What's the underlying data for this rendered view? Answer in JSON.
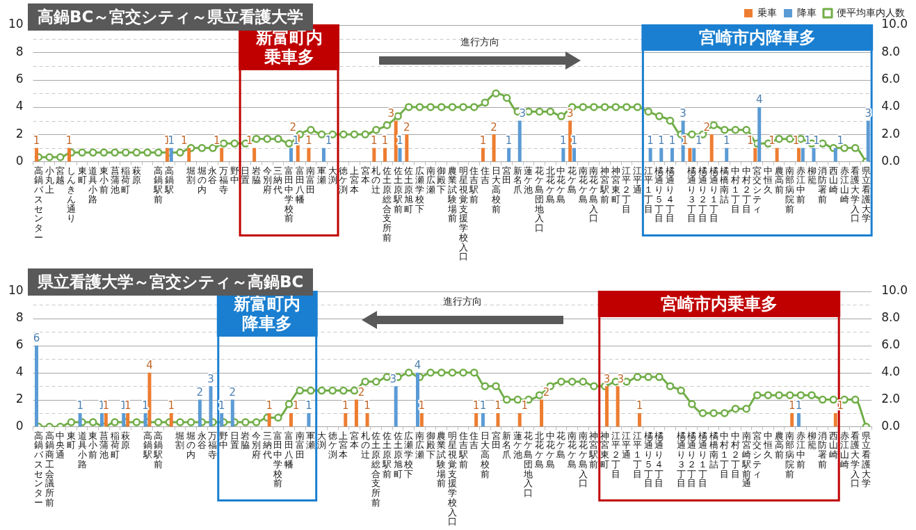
{
  "chart_data": [
    {
      "type": "bar",
      "title": "高鍋BC～宮交シティ～県立看護大学",
      "categories": [
        "高鍋バスセンター",
        "小丸上",
        "宮越",
        "しんきん通り",
        "東町",
        "道具小路",
        "東小前",
        "菖蒲池",
        "稲荷町",
        "萩原",
        null,
        "高鍋駅前",
        "高鍋駅",
        null,
        "堀割",
        "堀の内",
        "永谷",
        "万福寺",
        "野中",
        "日置",
        "岩脇",
        "今別府",
        "三納代",
        "富田中学校前",
        "富田八幡",
        "南富田",
        "軍瀬",
        "大渕",
        "徳ケ渕",
        "上宮本",
        "宮本",
        "札の辻",
        "佐土原総合支所前",
        "佐土原駅前",
        "佐土原旭町",
        "広瀬学校下",
        "南広瀬",
        "御殿下",
        "農業試験場前",
        "明星視覚支援学校入口",
        "住吉駅前",
        "住吉",
        "日大高校前",
        "宮田",
        "新名爪",
        "蓮ケ池",
        "花ケ島団地入口",
        "北花ケ島",
        "中花ケ島",
        "花ケ島",
        "南花ケ島",
        "南花ケ島入口",
        "神宮駅前",
        "神宮東町",
        "江平２丁目",
        "江平通",
        "江平１丁目",
        "橘通り５丁目",
        "橘通り４丁目",
        null,
        "橘通り３丁目",
        "橘通り２丁目",
        "橘通り１丁目",
        "橘橋南詰",
        "中村１丁目",
        "中村２丁目",
        "宮交シティ",
        "中恒久",
        "農高前",
        "南部病院前",
        "赤江中前",
        "柳籠",
        "消防署前",
        "西山崎",
        "赤江山崎",
        "看護大学入口",
        "県立看護大学"
      ],
      "series": [
        {
          "name": "乗車",
          "color": "#ed7d31",
          "values": [
            1,
            null,
            null,
            1,
            null,
            null,
            null,
            null,
            null,
            null,
            null,
            null,
            1,
            null,
            1,
            null,
            null,
            1,
            null,
            null,
            1,
            null,
            null,
            null,
            2,
            1,
            null,
            null,
            null,
            null,
            null,
            1,
            1,
            3,
            2,
            null,
            null,
            null,
            null,
            null,
            null,
            1,
            2,
            null,
            null,
            null,
            null,
            null,
            null,
            3,
            null,
            null,
            null,
            null,
            null,
            null,
            null,
            null,
            null,
            null,
            1,
            null,
            2,
            null,
            null,
            null,
            1,
            null,
            1,
            null,
            1,
            null,
            null,
            null,
            null,
            null,
            null
          ],
          "value_labels": [
            "1",
            null,
            null,
            "1",
            null,
            null,
            null,
            null,
            null,
            null,
            null,
            null,
            "1",
            null,
            "1",
            null,
            null,
            "1",
            null,
            null,
            "1",
            null,
            null,
            null,
            "2",
            "1",
            null,
            null,
            null,
            null,
            null,
            "1",
            "1",
            "3",
            "2",
            null,
            null,
            null,
            null,
            null,
            null,
            "1",
            "2",
            null,
            null,
            null,
            null,
            null,
            null,
            "3",
            null,
            null,
            null,
            null,
            null,
            null,
            null,
            null,
            null,
            null,
            "1",
            null,
            "2",
            null,
            null,
            null,
            "1",
            null,
            "1",
            null,
            "1",
            null,
            null,
            null,
            null,
            null,
            null
          ]
        },
        {
          "name": "降車",
          "color": "#5b9bd5",
          "values": [
            null,
            null,
            null,
            null,
            null,
            null,
            null,
            null,
            null,
            null,
            null,
            null,
            1,
            null,
            null,
            null,
            null,
            null,
            null,
            null,
            null,
            null,
            null,
            1,
            null,
            null,
            1,
            null,
            null,
            null,
            null,
            null,
            null,
            1,
            null,
            null,
            null,
            null,
            null,
            null,
            null,
            null,
            null,
            1,
            3,
            null,
            null,
            null,
            1,
            1,
            null,
            null,
            null,
            null,
            null,
            null,
            1,
            1,
            1,
            3,
            1,
            null,
            null,
            1,
            null,
            null,
            4,
            null,
            null,
            null,
            1,
            1,
            null,
            1,
            null,
            null,
            3
          ],
          "value_labels": [
            null,
            null,
            null,
            null,
            null,
            null,
            null,
            null,
            null,
            null,
            null,
            null,
            "1",
            null,
            null,
            null,
            null,
            null,
            null,
            null,
            null,
            null,
            null,
            "1",
            null,
            null,
            "1",
            null,
            null,
            null,
            null,
            null,
            null,
            "1",
            null,
            null,
            null,
            null,
            null,
            null,
            null,
            null,
            null,
            "1",
            "3",
            null,
            null,
            null,
            "1",
            "1",
            null,
            null,
            null,
            null,
            null,
            null,
            "1",
            "1",
            "1",
            "3",
            "1",
            null,
            null,
            "1",
            null,
            null,
            "4",
            null,
            null,
            null,
            "1",
            "1",
            null,
            "1",
            null,
            null,
            "3"
          ]
        },
        {
          "name": "便平均車内人数",
          "type": "line",
          "axis": "y2",
          "color": "#70ad47",
          "values": [
            0.33,
            0.33,
            0.33,
            0.67,
            0.67,
            0.67,
            0.67,
            0.67,
            0.67,
            0.67,
            0.67,
            0.67,
            0.67,
            0.67,
            1,
            1,
            1,
            1.33,
            1.33,
            1.33,
            1.67,
            1.67,
            1.67,
            1.33,
            2,
            2.33,
            2,
            2,
            2,
            2,
            2,
            2.33,
            2.67,
            3.33,
            4,
            4,
            4,
            4,
            4,
            4,
            4,
            4.33,
            5,
            4.67,
            3.67,
            3.67,
            3.67,
            3.67,
            3.33,
            4,
            4,
            4,
            4,
            4,
            4,
            4,
            3.67,
            3.33,
            3,
            2,
            2,
            2,
            2.67,
            2.33,
            2.33,
            2.33,
            1.33,
            1.33,
            1.67,
            1.67,
            1.67,
            1.33,
            1.33,
            1,
            1,
            1,
            0
          ]
        }
      ],
      "ylim": [
        0,
        10
      ],
      "yticks": [
        0,
        {
          "value": 1,
          "label": null
        },
        2,
        {
          "value": 3,
          "label": null
        },
        4,
        {
          "value": 5,
          "label": null
        },
        6,
        {
          "value": 7,
          "label": null
        },
        8,
        {
          "value": 9,
          "label": null
        },
        10
      ],
      "y2lim": [
        0,
        10
      ],
      "y2ticks": [
        {
          "value": 0,
          "label": "0.0"
        },
        {
          "value": 1,
          "label": null
        },
        {
          "value": 2,
          "label": "2.0"
        },
        {
          "value": 3,
          "label": null
        },
        {
          "value": 4,
          "label": "4.0"
        },
        {
          "value": 5,
          "label": null
        },
        {
          "value": 6,
          "label": "6.0"
        },
        {
          "value": 7,
          "label": null
        },
        {
          "value": 8,
          "label": "8.0"
        },
        {
          "value": 9,
          "label": null
        },
        {
          "value": 10,
          "label": "10.0"
        }
      ],
      "grid": "y",
      "legend": "top right",
      "marker": "circle",
      "bands": [
        {
          "axis": "x",
          "from": "日置",
          "to": "大渕",
          "label": "新富町内乗車多",
          "color": "#c00000"
        },
        {
          "axis": "x",
          "from": "江平１丁目",
          "to": "県立看護大学",
          "label": "宮崎市内降車多",
          "color": "#1a7fd0"
        }
      ],
      "annotations": [
        "進行方向"
      ]
    },
    {
      "type": "bar",
      "title": "県立看護大学～宮交シティ～高鍋BC",
      "categories": [
        "高鍋バスセンター",
        "高鍋商工会議所前",
        "中央通",
        "東町",
        "道具小路",
        "東小前",
        "菖蒲池",
        "稲荷町",
        "萩原",
        null,
        "高鍋駅",
        "高鍋駅前",
        null,
        "堀割",
        "堀の内",
        "永谷",
        "万福寺",
        "野中",
        "日置",
        "岩脇",
        "今別府",
        "三納代",
        "富田中学校前",
        "富田八幡",
        "南富田",
        "軍瀬",
        "大渕",
        "徳ケ渕",
        "上宮本",
        "宮本",
        "札の辻",
        "佐土原総合支所前",
        "佐土原駅前",
        "佐土原旭町",
        "広瀬学校下",
        "南広瀬",
        "御殿下",
        "農業試験場前",
        "明星視覚支援学校入口",
        "住吉駅前",
        "住吉",
        "日大高校前",
        "宮田",
        "新名爪",
        "蓮ケ池",
        "花ケ島団地入口",
        "北花ケ島",
        "中花ケ島",
        "花ケ島",
        "南花ケ島",
        "南花ケ島入口",
        "神宮駅前",
        "神宮東町",
        "江平２丁目",
        "江平通",
        "江平１丁目",
        "橘通り５丁目",
        "橘通り４丁目",
        null,
        "橘通り３丁目",
        "橘通り２丁目",
        "橘通り１丁目",
        "橘橋南詰",
        "中村１丁目",
        "中村２丁目",
        "南宮崎駅前通",
        "宮交シティ",
        "中恒久",
        "農高前",
        "南部病院前",
        "赤江中前",
        "柳籠",
        "消防署前",
        "西山崎",
        "赤江山崎",
        "看護大学入口",
        "県立看護大学"
      ],
      "series": [
        {
          "color": "#5b9bd5",
          "values": [
            6,
            null,
            null,
            null,
            1,
            null,
            1,
            null,
            1,
            null,
            1,
            null,
            null,
            null,
            null,
            2,
            3,
            1,
            2,
            null,
            null,
            null,
            null,
            null,
            null,
            1,
            null,
            null,
            null,
            null,
            null,
            null,
            null,
            3,
            null,
            4,
            null,
            null,
            null,
            null,
            null,
            1,
            null,
            null,
            null,
            null,
            null,
            null,
            null,
            null,
            null,
            null,
            null,
            null,
            null,
            null,
            null,
            null,
            null,
            null,
            null,
            null,
            null,
            null,
            null,
            null,
            null,
            null,
            null,
            null,
            1,
            null,
            null,
            null,
            null,
            null,
            null
          ],
          "value_labels": [
            "6",
            null,
            null,
            null,
            "1",
            null,
            "1",
            null,
            "1",
            null,
            "1",
            null,
            null,
            null,
            null,
            "2",
            "3",
            "1",
            "2",
            null,
            null,
            null,
            null,
            null,
            null,
            "1",
            null,
            null,
            null,
            null,
            null,
            null,
            null,
            "3",
            null,
            "4",
            null,
            null,
            null,
            null,
            null,
            "1",
            null,
            null,
            null,
            null,
            null,
            null,
            null,
            null,
            null,
            null,
            null,
            null,
            null,
            null,
            null,
            null,
            null,
            null,
            null,
            null,
            null,
            null,
            null,
            null,
            null,
            null,
            null,
            null,
            "1",
            null,
            null,
            null,
            null,
            null,
            null
          ]
        },
        {
          "color": "#ed7d31",
          "values": [
            null,
            null,
            null,
            null,
            null,
            null,
            1,
            null,
            1,
            null,
            4,
            null,
            1,
            null,
            null,
            null,
            null,
            null,
            null,
            null,
            null,
            1,
            null,
            1,
            null,
            null,
            null,
            null,
            1,
            2,
            1,
            null,
            null,
            null,
            null,
            1,
            null,
            null,
            null,
            null,
            1,
            null,
            1,
            null,
            1,
            null,
            2,
            null,
            null,
            null,
            null,
            null,
            3,
            3,
            null,
            1,
            null,
            null,
            null,
            null,
            null,
            null,
            null,
            null,
            null,
            null,
            null,
            null,
            null,
            1,
            null,
            null,
            null,
            1,
            null,
            null,
            null
          ],
          "value_labels": [
            null,
            null,
            null,
            null,
            null,
            null,
            "1",
            null,
            "1",
            null,
            "4",
            null,
            "1",
            null,
            null,
            null,
            null,
            null,
            null,
            null,
            null,
            "1",
            null,
            "1",
            null,
            null,
            null,
            null,
            "1",
            "2",
            "1",
            null,
            null,
            null,
            null,
            "1",
            null,
            null,
            null,
            null,
            "1",
            null,
            "1",
            null,
            "1",
            null,
            "2",
            null,
            null,
            null,
            null,
            null,
            "3",
            "3",
            null,
            "1",
            null,
            null,
            null,
            null,
            null,
            null,
            null,
            null,
            null,
            null,
            null,
            null,
            null,
            "1",
            null,
            null,
            null,
            "1",
            null,
            null,
            null
          ]
        },
        {
          "type": "line",
          "axis": "y2",
          "color": "#70ad47",
          "values": [
            0,
            0,
            0,
            0.33,
            0.33,
            0.33,
            0,
            0.33,
            0.33,
            0.33,
            0.33,
            0.33,
            0.33,
            0.33,
            0.33,
            0.33,
            0.33,
            0.33,
            0.33,
            0.33,
            0.33,
            0.67,
            0.67,
            1.67,
            2.67,
            2.67,
            2.67,
            2.67,
            2.67,
            2.67,
            3.33,
            3.33,
            3.67,
            3.67,
            4,
            3.67,
            4,
            4,
            4,
            4,
            4,
            3,
            3,
            2,
            2,
            2,
            2.33,
            3,
            3.33,
            3.33,
            3.33,
            3,
            3,
            3.33,
            3.33,
            3.67,
            3.67,
            3.67,
            3,
            2.67,
            1.67,
            1,
            1,
            1,
            1.33,
            1.33,
            2.33,
            2.33,
            2.33,
            2.33,
            2.33,
            2.33,
            2,
            2,
            2,
            2,
            0
          ]
        }
      ],
      "ylim": [
        0,
        10
      ],
      "yticks": [
        0,
        {
          "value": 1,
          "label": null
        },
        2,
        {
          "value": 3,
          "label": null
        },
        4,
        {
          "value": 5,
          "label": null
        },
        6,
        {
          "value": 7,
          "label": null
        },
        8,
        {
          "value": 9,
          "label": null
        },
        10
      ],
      "y2lim": [
        0,
        10
      ],
      "y2ticks": [
        {
          "value": 0,
          "label": "0.0"
        },
        {
          "value": 1,
          "label": null
        },
        {
          "value": 2,
          "label": "2.0"
        },
        {
          "value": 3,
          "label": null
        },
        {
          "value": 4,
          "label": "4.0"
        },
        {
          "value": 5,
          "label": null
        },
        {
          "value": 6,
          "label": "6.0"
        },
        {
          "value": 7,
          "label": null
        },
        {
          "value": 8,
          "label": "8.0"
        },
        {
          "value": 9,
          "label": null
        },
        {
          "value": 10,
          "label": "10.0"
        }
      ],
      "grid": "y",
      "marker": "circle",
      "bands": [
        {
          "axis": "x",
          "from": "野中",
          "to": "軍瀬",
          "label": "新富町内降車多",
          "color": "#1a7fd0"
        },
        {
          "axis": "x",
          "from": "神宮東町",
          "to": "西山崎",
          "label": "宮崎市内乗車多",
          "color": "#c00000"
        }
      ],
      "annotations": [
        "進行方向"
      ]
    }
  ]
}
